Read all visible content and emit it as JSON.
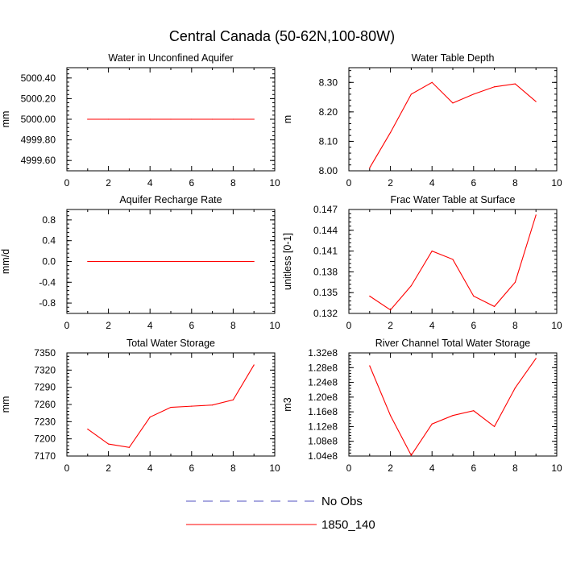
{
  "title": "Central Canada (50-62N,100-80W)",
  "series_color": "#ff0000",
  "obs_color": "#5050c0",
  "legend": [
    {
      "label": "No Obs",
      "style": "dashed",
      "color": "#5050c0"
    },
    {
      "label": "1850_140",
      "style": "solid",
      "color": "#ff0000"
    }
  ],
  "chart_data": [
    {
      "type": "line",
      "title": "Water in Unconfined Aquifer",
      "ylabel": "mm",
      "xlim": [
        0,
        10
      ],
      "ylim": [
        4999.5,
        5000.5
      ],
      "xticks": [
        0,
        2,
        4,
        6,
        8,
        10
      ],
      "xtick_labels": [
        "0",
        "2",
        "4",
        "6",
        "8",
        "10"
      ],
      "yticks": [
        4999.6,
        4999.8,
        5000.0,
        5000.2,
        5000.4
      ],
      "ytick_labels": [
        "4999.60",
        "4999.80",
        "5000.00",
        "5000.20",
        "5000.40"
      ],
      "series": [
        {
          "name": "1850_140",
          "x": [
            1,
            2,
            3,
            4,
            5,
            6,
            7,
            8,
            9
          ],
          "values": [
            5000,
            5000,
            5000,
            5000,
            5000,
            5000,
            5000,
            5000,
            5000
          ]
        }
      ]
    },
    {
      "type": "line",
      "title": "Water Table Depth",
      "ylabel": "m",
      "xlim": [
        0,
        10
      ],
      "ylim": [
        8.0,
        8.35
      ],
      "xticks": [
        0,
        2,
        4,
        6,
        8,
        10
      ],
      "xtick_labels": [
        "0",
        "2",
        "4",
        "6",
        "8",
        "10"
      ],
      "yticks": [
        8.0,
        8.1,
        8.2,
        8.3
      ],
      "ytick_labels": [
        "8.00",
        "8.10",
        "8.20",
        "8.30"
      ],
      "series": [
        {
          "name": "1850_140",
          "x": [
            1,
            2,
            3,
            4,
            5,
            6,
            7,
            8,
            9
          ],
          "values": [
            8.01,
            8.13,
            8.26,
            8.3,
            8.23,
            8.26,
            8.285,
            8.295,
            8.235
          ]
        }
      ]
    },
    {
      "type": "line",
      "title": "Aquifer Recharge Rate",
      "ylabel": "mm/d",
      "xlim": [
        0,
        10
      ],
      "ylim": [
        -1.0,
        1.0
      ],
      "xticks": [
        0,
        2,
        4,
        6,
        8,
        10
      ],
      "xtick_labels": [
        "0",
        "2",
        "4",
        "6",
        "8",
        "10"
      ],
      "yticks": [
        -0.8,
        -0.4,
        0.0,
        0.4,
        0.8
      ],
      "ytick_labels": [
        "-0.8",
        "-0.4",
        "0.0",
        "0.4",
        "0.8"
      ],
      "series": [
        {
          "name": "1850_140",
          "x": [
            1,
            2,
            3,
            4,
            5,
            6,
            7,
            8,
            9
          ],
          "values": [
            0,
            0,
            0,
            0,
            0,
            0,
            0,
            0,
            0
          ]
        }
      ]
    },
    {
      "type": "line",
      "title": "Frac Water Table at Surface",
      "ylabel": "unitless [0-1]",
      "xlim": [
        0,
        10
      ],
      "ylim": [
        0.132,
        0.147
      ],
      "xticks": [
        0,
        2,
        4,
        6,
        8,
        10
      ],
      "xtick_labels": [
        "0",
        "2",
        "4",
        "6",
        "8",
        "10"
      ],
      "yticks": [
        0.132,
        0.135,
        0.138,
        0.141,
        0.144,
        0.147
      ],
      "ytick_labels": [
        "0.132",
        "0.135",
        "0.138",
        "0.141",
        "0.144",
        "0.147"
      ],
      "series": [
        {
          "name": "1850_140",
          "x": [
            1,
            2,
            3,
            4,
            5,
            6,
            7,
            8,
            9
          ],
          "values": [
            0.1345,
            0.1325,
            0.136,
            0.141,
            0.1398,
            0.1345,
            0.133,
            0.1365,
            0.1462
          ]
        }
      ]
    },
    {
      "type": "line",
      "title": "Total Water Storage",
      "ylabel": "mm",
      "xlim": [
        0,
        10
      ],
      "ylim": [
        7170,
        7350
      ],
      "xticks": [
        0,
        2,
        4,
        6,
        8,
        10
      ],
      "xtick_labels": [
        "0",
        "2",
        "4",
        "6",
        "8",
        "10"
      ],
      "yticks": [
        7170,
        7200,
        7230,
        7260,
        7290,
        7320,
        7350
      ],
      "ytick_labels": [
        "7170",
        "7200",
        "7230",
        "7260",
        "7290",
        "7320",
        "7350"
      ],
      "series": [
        {
          "name": "1850_140",
          "x": [
            1,
            2,
            3,
            4,
            5,
            6,
            7,
            8,
            9
          ],
          "values": [
            7217,
            7191,
            7185,
            7238,
            7255,
            7257,
            7259,
            7268,
            7329
          ]
        }
      ]
    },
    {
      "type": "line",
      "title": "River Channel Total Water Storage",
      "ylabel": "m3",
      "xlim": [
        0,
        10
      ],
      "ylim": [
        104000000,
        132000000
      ],
      "xticks": [
        0,
        2,
        4,
        6,
        8,
        10
      ],
      "xtick_labels": [
        "0",
        "2",
        "4",
        "6",
        "8",
        "10"
      ],
      "yticks": [
        104000000,
        108000000,
        112000000,
        116000000,
        120000000,
        124000000,
        128000000,
        132000000
      ],
      "ytick_labels": [
        "1.04e8",
        "1.08e8",
        "1.12e8",
        "1.16e8",
        "1.20e8",
        "1.24e8",
        "1.28e8",
        "1.32e8"
      ],
      "series": [
        {
          "name": "1850_140",
          "x": [
            1,
            2,
            3,
            4,
            5,
            6,
            7,
            8,
            9
          ],
          "values": [
            128500000,
            115000000,
            104200000,
            112700000,
            115000000,
            116300000,
            112000000,
            122500000,
            130500000
          ]
        }
      ]
    }
  ]
}
